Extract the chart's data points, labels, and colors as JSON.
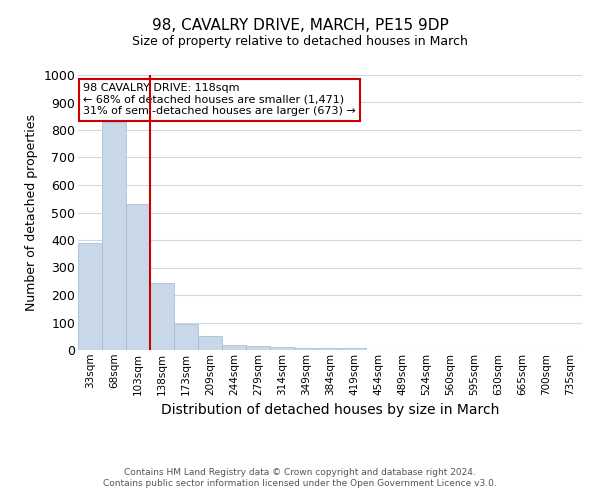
{
  "title1": "98, CAVALRY DRIVE, MARCH, PE15 9DP",
  "title2": "Size of property relative to detached houses in March",
  "xlabel": "Distribution of detached houses by size in March",
  "ylabel": "Number of detached properties",
  "categories": [
    "33sqm",
    "68sqm",
    "103sqm",
    "138sqm",
    "173sqm",
    "209sqm",
    "244sqm",
    "279sqm",
    "314sqm",
    "349sqm",
    "384sqm",
    "419sqm",
    "454sqm",
    "489sqm",
    "524sqm",
    "560sqm",
    "595sqm",
    "630sqm",
    "665sqm",
    "700sqm",
    "735sqm"
  ],
  "values": [
    390,
    830,
    530,
    245,
    95,
    50,
    20,
    15,
    10,
    8,
    8,
    8,
    0,
    0,
    0,
    0,
    0,
    0,
    0,
    0,
    0
  ],
  "bar_color": "#c8d8e8",
  "bar_edge_color": "#a0b8d0",
  "red_line_x": 2.5,
  "annotation_line1": "98 CAVALRY DRIVE: 118sqm",
  "annotation_line2": "← 68% of detached houses are smaller (1,471)",
  "annotation_line3": "31% of semi-detached houses are larger (673) →",
  "annotation_box_color": "#ffffff",
  "annotation_border_color": "#cc0000",
  "ylim": [
    0,
    1000
  ],
  "yticks": [
    0,
    100,
    200,
    300,
    400,
    500,
    600,
    700,
    800,
    900,
    1000
  ],
  "footer1": "Contains HM Land Registry data © Crown copyright and database right 2024.",
  "footer2": "Contains public sector information licensed under the Open Government Licence v3.0.",
  "background_color": "#ffffff",
  "grid_color": "#d0d8e8"
}
